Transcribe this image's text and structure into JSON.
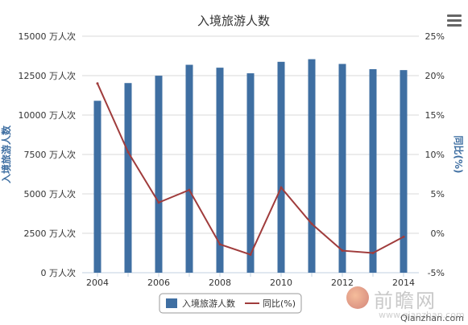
{
  "chart_data": {
    "type": "bar+line",
    "title": "入境旅游人数",
    "categories": [
      "2004",
      "2005",
      "2006",
      "2007",
      "2008",
      "2009",
      "2010",
      "2011",
      "2012",
      "2013",
      "2014"
    ],
    "x_tick_labels": [
      "2004",
      "2006",
      "2008",
      "2010",
      "2012",
      "2014"
    ],
    "y_left": {
      "label": "入境旅游人数",
      "min": 0,
      "max": 15000,
      "ticks": [
        0,
        2500,
        5000,
        7500,
        10000,
        12500,
        15000
      ],
      "tick_suffix": " 万人次"
    },
    "y_right": {
      "label": "同比(%)",
      "min": -5,
      "max": 25,
      "ticks": [
        -5,
        0,
        5,
        10,
        15,
        20,
        25
      ],
      "tick_suffix": "%"
    },
    "series": [
      {
        "name": "入境旅游人数",
        "type": "bar",
        "axis": "left",
        "color": "#3f6fa2",
        "values": [
          10904,
          12029,
          12494,
          13187,
          13003,
          12648,
          13376,
          13542,
          13241,
          12908,
          12850
        ]
      },
      {
        "name": "同比(%)",
        "type": "line",
        "axis": "right",
        "color": "#a03c3c",
        "values": [
          19.0,
          10.3,
          3.9,
          5.5,
          -1.4,
          -2.7,
          5.8,
          1.2,
          -2.2,
          -2.5,
          -0.45
        ]
      }
    ],
    "legend_position": "bottom-center",
    "grid": true
  },
  "watermark": {
    "brand": "前瞻网",
    "url": "www.qianzhan.com",
    "site": "Qianzhan.com"
  }
}
